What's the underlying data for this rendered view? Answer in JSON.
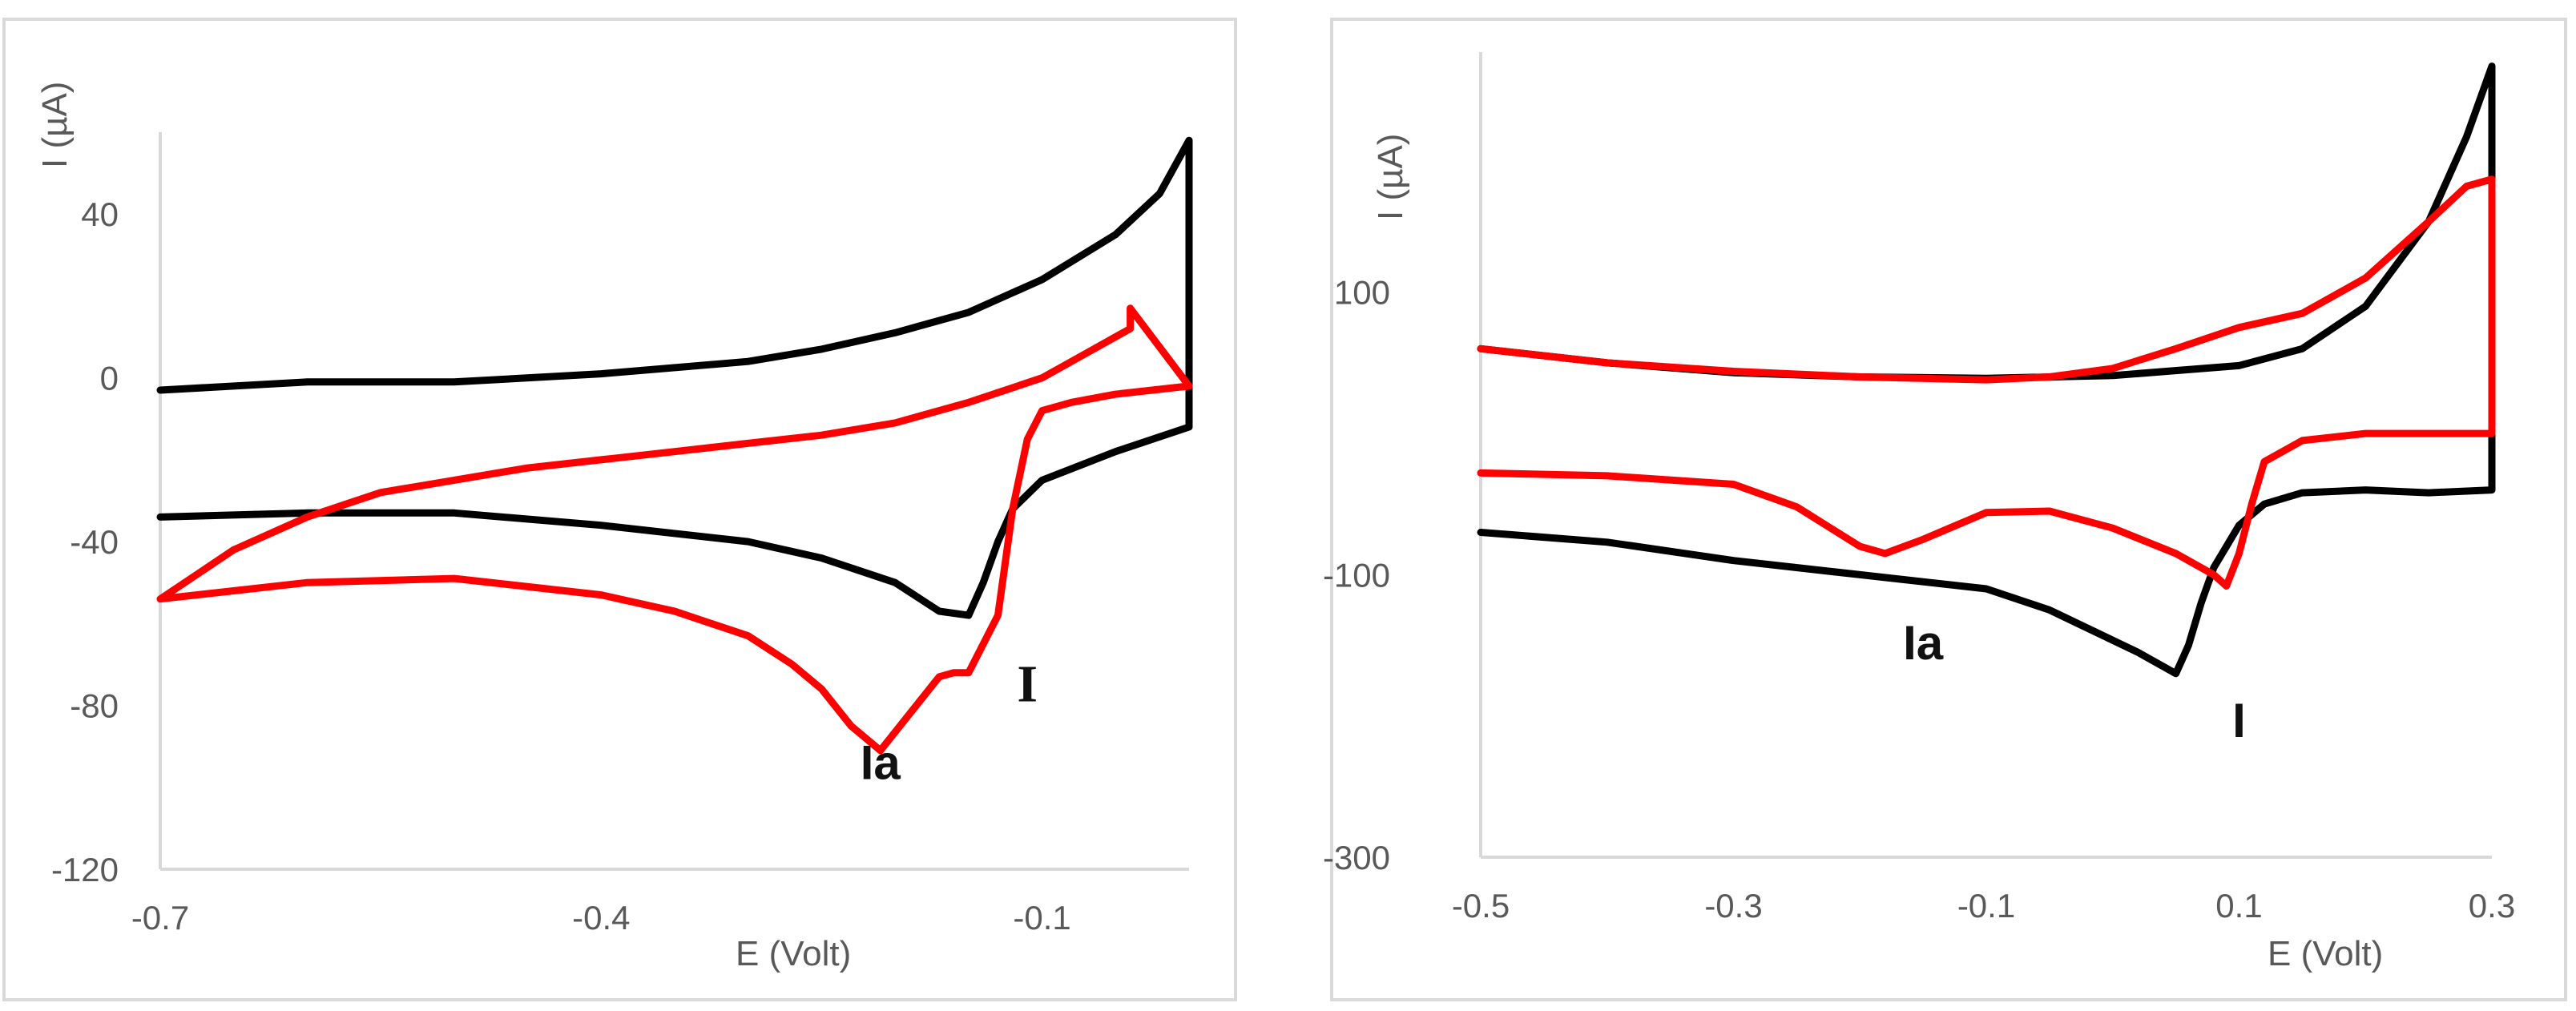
{
  "chart_data": [
    {
      "type": "line",
      "title": "",
      "xlabel": "E (Volt)",
      "ylabel": "I (µA)",
      "xlim": [
        -0.7,
        0.0
      ],
      "ylim": [
        -120,
        60
      ],
      "xticks": [
        -0.7,
        -0.4,
        -0.1
      ],
      "xtick_labels": [
        "-0.7",
        "-0.4",
        "-0.1"
      ],
      "yticks": [
        -120,
        -80,
        -40,
        0,
        40
      ],
      "ytick_labels": [
        "-120",
        "-80",
        "-40",
        "0",
        "40"
      ],
      "grid": false,
      "colors": {
        "black": "#000000",
        "red": "#ff0000",
        "axis": "#d9d9d9",
        "frame": "#d9d9d9"
      },
      "series": [
        {
          "name": "black",
          "color": "#000000",
          "x": [
            -0.7,
            -0.6,
            -0.5,
            -0.4,
            -0.3,
            -0.25,
            -0.2,
            -0.15,
            -0.1,
            -0.05,
            -0.02,
            0.0,
            0.0,
            -0.05,
            -0.1,
            -0.12,
            -0.13,
            -0.14,
            -0.15,
            -0.17,
            -0.2,
            -0.25,
            -0.3,
            -0.4,
            -0.5,
            -0.6,
            -0.7
          ],
          "y": [
            -3,
            -1,
            -1,
            1,
            4,
            7,
            11,
            16,
            24,
            35,
            45,
            58,
            -12,
            -18,
            -25,
            -32,
            -40,
            -50,
            -58,
            -57,
            -50,
            -44,
            -40,
            -36,
            -33,
            -33,
            -34
          ]
        },
        {
          "name": "red",
          "color": "#ff0000",
          "x": [
            -0.7,
            -0.65,
            -0.6,
            -0.55,
            -0.5,
            -0.45,
            -0.4,
            -0.35,
            -0.3,
            -0.25,
            -0.2,
            -0.15,
            -0.1,
            -0.07,
            -0.04,
            -0.04,
            0.0,
            -0.05,
            -0.08,
            -0.1,
            -0.11,
            -0.12,
            -0.13,
            -0.15,
            -0.16,
            -0.17,
            -0.19,
            -0.21,
            -0.23,
            -0.25,
            -0.27,
            -0.3,
            -0.35,
            -0.4,
            -0.5,
            -0.6,
            -0.7
          ],
          "y": [
            -54,
            -42,
            -34,
            -28,
            -25,
            -22,
            -20,
            -18,
            -16,
            -14,
            -11,
            -6,
            0,
            6,
            12,
            17,
            -2,
            -4,
            -6,
            -8,
            -15,
            -32,
            -58,
            -72,
            -72,
            -73,
            -82,
            -91,
            -85,
            -76,
            -70,
            -63,
            -57,
            -53,
            -49,
            -50,
            -54
          ]
        }
      ],
      "annotations": [
        {
          "text": "Ia",
          "x": -0.21,
          "y": -98
        },
        {
          "text": "I",
          "x": -0.11,
          "y": -79
        }
      ]
    },
    {
      "type": "line",
      "title": "",
      "xlabel": "E (Volt)",
      "ylabel": "I (µA)",
      "xlim": [
        -0.5,
        0.3
      ],
      "ylim": [
        -300,
        270
      ],
      "xticks": [
        -0.5,
        -0.3,
        -0.1,
        0.1,
        0.3
      ],
      "xtick_labels": [
        "-0.5",
        "-0.3",
        "-0.1",
        "0.1",
        "0.3"
      ],
      "yticks": [
        -300,
        -100,
        100
      ],
      "ytick_labels": [
        "-300",
        "-100",
        "100"
      ],
      "grid": false,
      "colors": {
        "black": "#000000",
        "red": "#ff0000",
        "axis": "#d9d9d9",
        "frame": "#d9d9d9"
      },
      "series": [
        {
          "name": "black",
          "color": "#000000",
          "x": [
            -0.5,
            -0.4,
            -0.3,
            -0.2,
            -0.1,
            0.0,
            0.1,
            0.15,
            0.2,
            0.25,
            0.28,
            0.3,
            0.3,
            0.25,
            0.2,
            0.15,
            0.12,
            0.1,
            0.08,
            0.07,
            0.06,
            0.05,
            0.02,
            -0.05,
            -0.1,
            -0.2,
            -0.3,
            -0.4,
            -0.5
          ],
          "y": [
            60,
            50,
            43,
            40,
            39,
            41,
            48,
            60,
            90,
            150,
            210,
            260,
            -40,
            -42,
            -40,
            -42,
            -50,
            -65,
            -95,
            -120,
            -150,
            -170,
            -155,
            -125,
            -110,
            -100,
            -90,
            -77,
            -70
          ]
        },
        {
          "name": "red",
          "color": "#ff0000",
          "x": [
            -0.5,
            -0.4,
            -0.3,
            -0.2,
            -0.1,
            -0.05,
            0.0,
            0.05,
            0.1,
            0.15,
            0.2,
            0.25,
            0.28,
            0.3,
            0.3,
            0.2,
            0.15,
            0.12,
            0.11,
            0.1,
            0.09,
            0.08,
            0.05,
            0.0,
            -0.05,
            -0.1,
            -0.15,
            -0.18,
            -0.2,
            -0.25,
            -0.3,
            -0.4,
            -0.5
          ],
          "y": [
            60,
            50,
            44,
            40,
            38,
            40,
            46,
            60,
            75,
            85,
            110,
            150,
            175,
            180,
            0,
            0,
            -5,
            -20,
            -50,
            -85,
            -108,
            -100,
            -85,
            -67,
            -55,
            -56,
            -75,
            -85,
            -80,
            -52,
            -36,
            -30,
            -28
          ]
        }
      ],
      "annotations": [
        {
          "text": "Ia",
          "x": -0.15,
          "y": -160
        },
        {
          "text": "I",
          "x": 0.1,
          "y": -215
        }
      ]
    }
  ]
}
